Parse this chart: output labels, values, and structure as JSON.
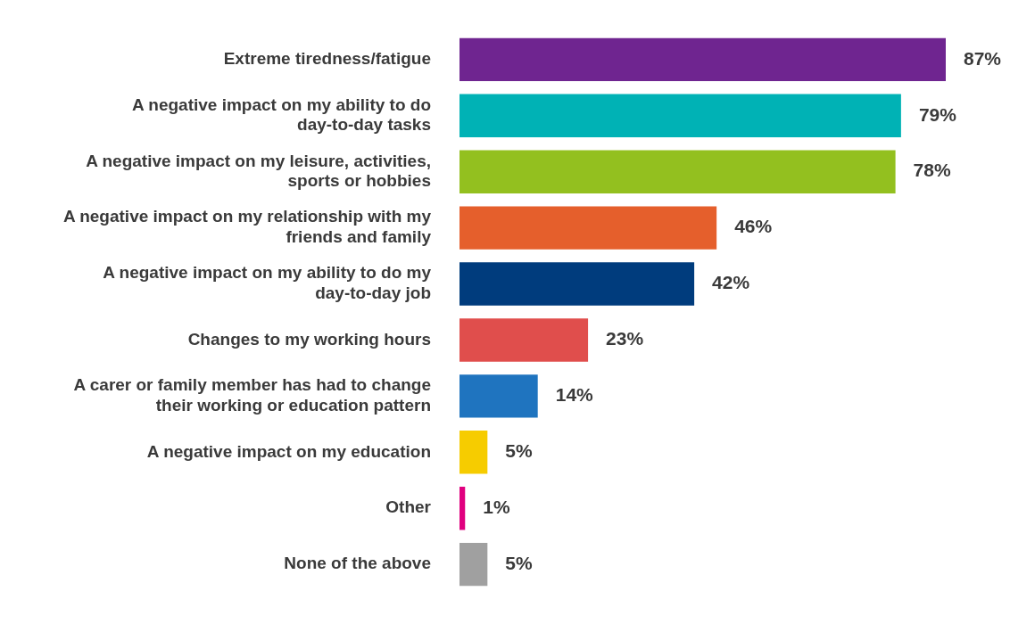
{
  "chart_data": {
    "type": "bar",
    "orientation": "horizontal",
    "categories": [
      "Extreme tiredness/fatigue",
      "A negative impact on my ability to do day-to-day tasks",
      "A negative impact on my leisure, activities, sports or hobbies",
      "A negative impact on my relationship with my friends and family",
      "A negative impact on my ability to do my day-to-day job",
      "Changes to my working hours",
      "A carer or family member has had to change their working or education pattern",
      "A negative impact on my education",
      "Other",
      "None of the above"
    ],
    "values": [
      87,
      79,
      78,
      46,
      42,
      23,
      14,
      5,
      1,
      5
    ],
    "colors": [
      "#6f2590",
      "#00b2b5",
      "#93c01f",
      "#e55f2c",
      "#003c7d",
      "#e04e4c",
      "#1f74bf",
      "#f6cc00",
      "#e0007f",
      "#a0a0a0"
    ],
    "value_labels": [
      "87%",
      "79%",
      "78%",
      "46%",
      "42%",
      "23%",
      "14%",
      "5%",
      "1%",
      "5%"
    ]
  }
}
